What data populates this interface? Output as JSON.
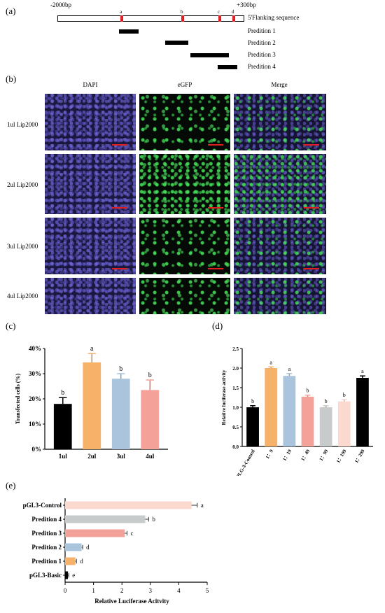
{
  "panel_a": {
    "label": "(a)",
    "start": "-2000bp",
    "end": "+300bp",
    "sequence_label": "5'Flanking sequence",
    "sites": [
      "a",
      "b",
      "c",
      "d"
    ],
    "predictions": [
      "Predition 1",
      "Predition 2",
      "Predition 3",
      "Predition 4"
    ]
  },
  "panel_b": {
    "label": "(b)",
    "columns": [
      "DAPI",
      "eGFP",
      "Merge"
    ],
    "rows": [
      "1ul Lip2000",
      "2ul Lip2000",
      "3ul Lip2000",
      "4ul Lip2000"
    ]
  },
  "colors": {
    "black": "#000000",
    "orange": "#f7b26a",
    "blue": "#a9c4dc",
    "salmon": "#f4a19a",
    "gray": "#c7cbcc",
    "peach": "#fbd9cf",
    "red_site": "#e02020"
  },
  "chart_data": [
    {
      "id": "c",
      "panel_label": "(c)",
      "type": "bar",
      "ylabel": "Transfected cells (%)",
      "categories": [
        "1ul",
        "2ul",
        "3ul",
        "4ul"
      ],
      "values": [
        18,
        34.5,
        28,
        23.5
      ],
      "errors": [
        2.5,
        3.5,
        2,
        4
      ],
      "letters": [
        "b",
        "a",
        "b",
        "b"
      ],
      "colors": [
        "#000000",
        "#f7b26a",
        "#a9c4dc",
        "#f4a19a"
      ],
      "ylim": [
        0,
        40
      ],
      "yticks": [
        "0%",
        "10%",
        "20%",
        "30%",
        "40%"
      ]
    },
    {
      "id": "d",
      "panel_label": "(d)",
      "type": "bar",
      "ylabel": "Relative luciferase activity",
      "categories": [
        "PLG-3-Control",
        "1：9",
        "1：19",
        "1：49",
        "1：99",
        "1：199",
        "1：299"
      ],
      "values": [
        1.0,
        2.0,
        1.8,
        1.27,
        1.0,
        1.15,
        1.75
      ],
      "errors": [
        0.04,
        0.03,
        0.06,
        0.04,
        0.04,
        0.05,
        0.05
      ],
      "letters": [
        "b",
        "a",
        "a",
        "b",
        "b",
        "b",
        "a"
      ],
      "colors": [
        "#000000",
        "#f7b26a",
        "#a9c4dc",
        "#f4a19a",
        "#c7cbcc",
        "#fbd9cf",
        "#000000"
      ],
      "ylim": [
        0,
        2.5
      ],
      "yticks": [
        "0.0",
        "0.5",
        "1.0",
        "1.5",
        "2.0",
        "2.5"
      ]
    },
    {
      "id": "e",
      "panel_label": "(e)",
      "type": "bar",
      "orientation": "horizontal",
      "xlabel": "Relative Luciferase Acitvity",
      "categories": [
        "pGL3-Control",
        "Predition 4",
        "Predition 3",
        "Predition 2",
        "Predition 1",
        "pGL3-Basic"
      ],
      "values": [
        4.45,
        2.82,
        2.1,
        0.58,
        0.36,
        0.1
      ],
      "errors": [
        0.2,
        0.12,
        0.08,
        0.04,
        0.04,
        0.03
      ],
      "letters": [
        "a",
        "b",
        "c",
        "d",
        "d",
        "e"
      ],
      "colors": [
        "#fbd9cf",
        "#c7cbcc",
        "#f4a19a",
        "#a9c4dc",
        "#f7b26a",
        "#000000"
      ],
      "xlim": [
        0,
        5
      ],
      "xticks": [
        "0",
        "1",
        "2",
        "3",
        "4",
        "5"
      ]
    }
  ]
}
